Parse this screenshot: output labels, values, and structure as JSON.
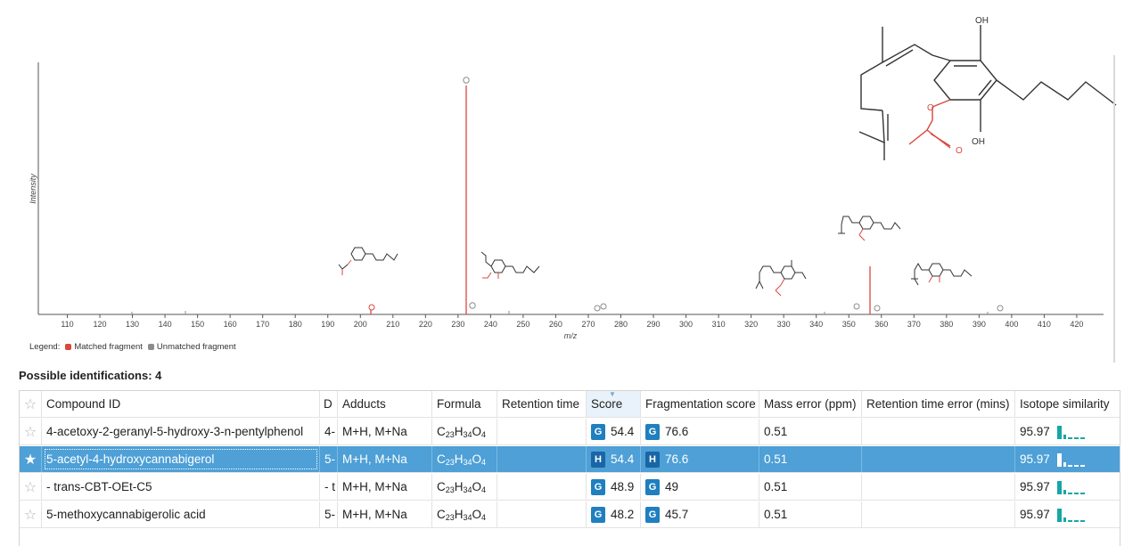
{
  "spectrum": {
    "ylabel": "Intensity",
    "xlabel": "m/z",
    "ticks": [
      "110",
      "120",
      "130",
      "140",
      "150",
      "160",
      "170",
      "180",
      "190",
      "200",
      "210",
      "220",
      "230",
      "240",
      "250",
      "260",
      "270",
      "280",
      "290",
      "300",
      "310",
      "320",
      "330",
      "340",
      "350",
      "360",
      "370",
      "380",
      "390",
      "400",
      "410",
      "420"
    ],
    "colors": {
      "matched": "#d9473d",
      "unmatched": "#8c8c8c",
      "axis": "#444444"
    }
  },
  "legend": {
    "label": "Legend:",
    "matched": "Matched fragment",
    "unmatched": "Unmatched fragment"
  },
  "structure_labels": {
    "oh1": "OH",
    "oh2": "OH",
    "o1": "O",
    "o2": "O"
  },
  "identifications": {
    "title": "Possible identifications: 4",
    "columns": {
      "compound_id": "Compound ID",
      "description": "D",
      "adducts": "Adducts",
      "formula": "Formula",
      "retention_time": "Retention time",
      "score": "Score",
      "fragmentation_score": "Fragmentation score",
      "mass_error": "Mass error (ppm)",
      "retention_time_error": "Retention time error (mins)",
      "isotope_similarity": "Isotope similarity"
    },
    "rows": [
      {
        "compound_id": "4-acetoxy-2-geranyl-5-hydroxy-3-n-pentylphenol",
        "description": "4-",
        "adducts": "M+H, M+Na",
        "formula": "C23H34O4",
        "score_badge": "G",
        "score": "54.4",
        "frag_badge": "G",
        "frag_score": "76.6",
        "mass_error": "0.51",
        "isotope": "95.97"
      },
      {
        "compound_id": "5-acetyl-4-hydroxycannabigerol",
        "description": "5-",
        "adducts": "M+H, M+Na",
        "formula": "C23H34O4",
        "score_badge": "H",
        "score": "54.4",
        "frag_badge": "H",
        "frag_score": "76.6",
        "mass_error": "0.51",
        "isotope": "95.97"
      },
      {
        "compound_id": "- trans-CBT-OEt-C5",
        "description": "- t",
        "adducts": "M+H, M+Na",
        "formula": "C23H34O4",
        "score_badge": "G",
        "score": "48.9",
        "frag_badge": "G",
        "frag_score": "49",
        "mass_error": "0.51",
        "isotope": "95.97"
      },
      {
        "compound_id": "5-methoxycannabigerolic acid",
        "description": "5-",
        "adducts": "M+H, M+Na",
        "formula": "C23H34O4",
        "score_badge": "G",
        "score": "48.2",
        "frag_badge": "G",
        "frag_score": "45.7",
        "mass_error": "0.51",
        "isotope": "95.97"
      }
    ]
  }
}
